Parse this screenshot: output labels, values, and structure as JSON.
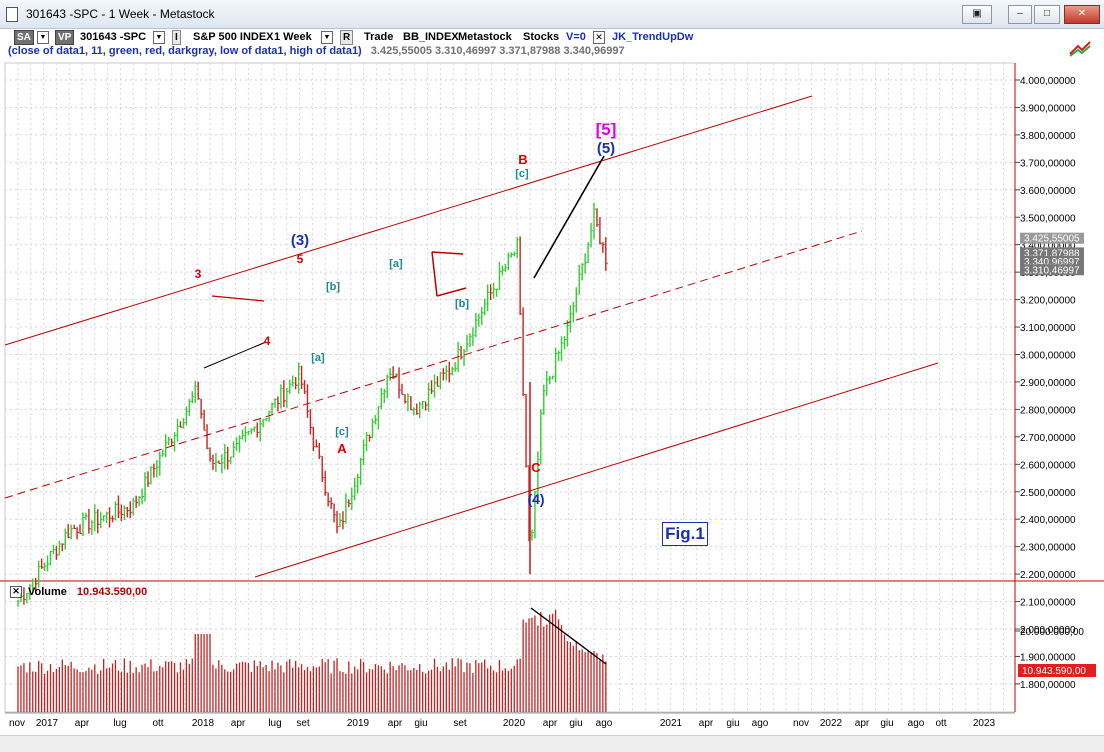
{
  "window": {
    "title": "301643 -SPC - 1 Week - Metastock"
  },
  "toolbar": {
    "sa": "SA",
    "vp": "VP",
    "symbol": "301643 -SPC",
    "i_btn": "I",
    "instrument": "S&P 500 INDEX",
    "period": "1 Week",
    "r_btn": "R",
    "trade": "Trade",
    "index": "BB_INDEX",
    "source": "Metastock",
    "kind": "Stocks",
    "v": "V=0",
    "indicator": "JK_TrendUpDw"
  },
  "legend": {
    "params": "(close of data1,  11,  green,  red,  darkgray,  low of data1,  high of data1)",
    "values": "3.425,55005  3.310,46997  3.371,87988  3.340,96997"
  },
  "price_axis": {
    "labels": [
      "4.000,00000",
      "3.900,00000",
      "3.800,00000",
      "3.700,00000",
      "3.600,00000",
      "3.500,00000",
      "3.400,00000",
      "3.300,00000",
      "3.200,00000",
      "3.100,00000",
      "3.000,00000",
      "2.900,00000",
      "2.800,00000",
      "2.700,00000",
      "2.600,00000",
      "2.500,00000",
      "2.400,00000",
      "2.300,00000",
      "2.200,00000",
      "2.100,00000",
      "2.000,00000",
      "1.900,00000",
      "1.800,00000"
    ],
    "flags": [
      "3.425,55005",
      "3.371,87988",
      "3.340,96997",
      "3.310,46997"
    ]
  },
  "wave_labels": {
    "w3_red": "3",
    "w4_red": "4",
    "w5_red": "5",
    "w3_blue": "(3)",
    "a_teal": "[a]",
    "b_teal": "[b]",
    "a2_teal": "[a]",
    "c_teal": "[c]",
    "A": "A",
    "a3_teal": "[a]",
    "b2_teal": "[b]",
    "c2_teal": "[c]",
    "B": "B",
    "C": "C",
    "w4_blue": "(4)",
    "w5_blue": "(5)",
    "w5_magenta": "[5]"
  },
  "fig_label": "Fig.1",
  "volume": {
    "title": "Volume",
    "value": "10.943.590,00",
    "axis_label": "20.000.000,00",
    "flag": "10.943.590,00"
  },
  "time_axis": {
    "labels": [
      "nov",
      "2017",
      "apr",
      "lug",
      "ott",
      "2018",
      "apr",
      "lug",
      "set",
      "2019",
      "apr",
      "giu",
      "set",
      "2020",
      "apr",
      "giu",
      "ago",
      "2021",
      "apr",
      "giu",
      "ago",
      "nov",
      "2022",
      "apr",
      "giu",
      "ago",
      "ott",
      "2023"
    ]
  },
  "chart_data": {
    "type": "candlestick",
    "title": "S&P 500 INDEX",
    "xlabel": "",
    "ylabel": "",
    "period": "1 Week",
    "ylim": [
      1800,
      4050
    ],
    "x_range": [
      "2016-11",
      "2023-02"
    ],
    "series": [
      {
        "name": "price",
        "x": [
          "2016-11",
          "2017-03",
          "2017-08",
          "2018-01",
          "2018-02",
          "2018-04",
          "2018-09",
          "2018-10",
          "2018-12",
          "2019-04",
          "2019-06",
          "2019-09",
          "2019-12",
          "2020-02",
          "2020-03",
          "2020-04",
          "2020-06",
          "2020-08",
          "2020-09"
        ],
        "values": [
          2100,
          2360,
          2450,
          2870,
          2600,
          2650,
          2930,
          2700,
          2350,
          2950,
          2800,
          2960,
          3230,
          3390,
          2240,
          2850,
          3100,
          3500,
          3340
        ]
      }
    ],
    "volume_series": {
      "name": "Volume",
      "last": 10943590,
      "peak_period": "2020-03"
    },
    "annotations": [
      "3",
      "4",
      "5",
      "(3)",
      "[a]",
      "[b]",
      "[c]",
      "A",
      "B",
      "C",
      "(4)",
      "(5)",
      "[5]",
      "Fig.1"
    ]
  },
  "colors": {
    "up_bar": "#33cc33",
    "down_bar": "#cc2222",
    "channel": "#c00000",
    "wave_red": "#e00000",
    "wave_blue": "#1a2fb0",
    "wave_teal": "#1a8a8a",
    "wave_magenta": "#e000e0",
    "volume_bar": "#c82020"
  }
}
